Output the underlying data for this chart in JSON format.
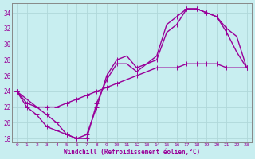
{
  "xlabel": "Windchill (Refroidissement éolien,°C)",
  "ylabel": "",
  "bg_color": "#c8eef0",
  "grid_color": "#b0d8da",
  "line_color": "#990099",
  "xlim": [
    -0.5,
    23.5
  ],
  "ylim": [
    17.5,
    35.2
  ],
  "xticks": [
    0,
    1,
    2,
    3,
    4,
    5,
    6,
    7,
    8,
    9,
    10,
    11,
    12,
    13,
    14,
    15,
    16,
    17,
    18,
    19,
    20,
    21,
    22,
    23
  ],
  "yticks": [
    18,
    20,
    22,
    24,
    26,
    28,
    30,
    32,
    34
  ],
  "line1_x": [
    0,
    1,
    2,
    3,
    4,
    5,
    6,
    7,
    8,
    9,
    10,
    11,
    12,
    13,
    14,
    15,
    16,
    17,
    18,
    19,
    20,
    21,
    22,
    23
  ],
  "line1_y": [
    24.0,
    22.5,
    22.0,
    22.0,
    22.0,
    22.5,
    23.0,
    23.5,
    24.0,
    24.5,
    25.0,
    25.5,
    26.0,
    26.5,
    27.0,
    27.0,
    27.0,
    27.5,
    27.5,
    27.5,
    27.5,
    27.0,
    27.0,
    27.0
  ],
  "line2_x": [
    0,
    1,
    2,
    3,
    4,
    5,
    6,
    7,
    8,
    9,
    10,
    11,
    12,
    13,
    14,
    15,
    16,
    17,
    18,
    19,
    20,
    21,
    22,
    23
  ],
  "line2_y": [
    24.0,
    22.0,
    21.0,
    19.5,
    19.0,
    18.5,
    18.0,
    18.5,
    22.0,
    26.0,
    28.0,
    28.5,
    27.0,
    27.5,
    28.0,
    31.5,
    32.5,
    34.5,
    34.5,
    34.0,
    33.5,
    31.5,
    29.0,
    27.0
  ],
  "line3_x": [
    0,
    3,
    4,
    5,
    6,
    7,
    8,
    9,
    10,
    11,
    12,
    13,
    14,
    15,
    16,
    17,
    18,
    19,
    20,
    21,
    22,
    23
  ],
  "line3_y": [
    24.0,
    21.0,
    20.0,
    18.5,
    18.0,
    18.0,
    22.5,
    25.5,
    27.5,
    27.5,
    26.5,
    27.5,
    28.5,
    32.5,
    33.5,
    34.5,
    34.5,
    34.0,
    33.5,
    32.0,
    31.0,
    27.0
  ],
  "marker_size": 3,
  "line_width": 1.0,
  "font_family": "monospace"
}
